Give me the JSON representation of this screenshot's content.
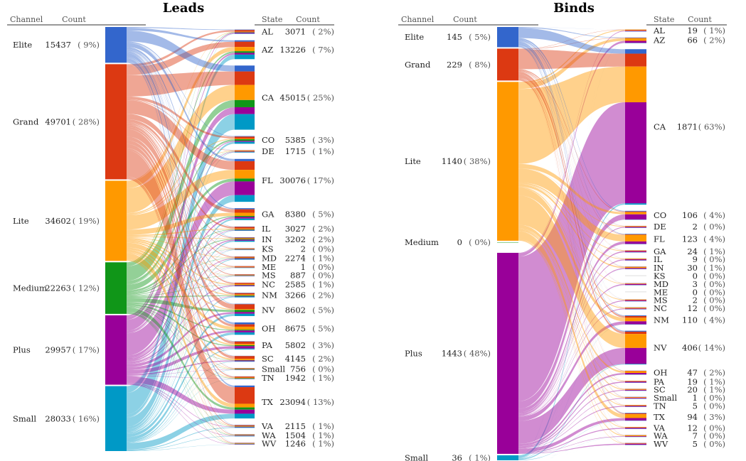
{
  "colors": {
    "Elite": "#3366cc",
    "Grand": "#dc3912",
    "Lite": "#ff9900",
    "Medium": "#109618",
    "Plus": "#990099",
    "Small": "#0099c6"
  },
  "chart_data": [
    {
      "type": "sankey",
      "title": "Leads",
      "left_header": [
        "Channel",
        "Count"
      ],
      "right_header": [
        "State",
        "Count"
      ],
      "channels": [
        {
          "name": "Elite",
          "count": 15437,
          "pct": "( 9%)"
        },
        {
          "name": "Grand",
          "count": 49701,
          "pct": "( 28%)"
        },
        {
          "name": "Lite",
          "count": 34602,
          "pct": "( 19%)"
        },
        {
          "name": "Medium",
          "count": 22263,
          "pct": "( 12%)"
        },
        {
          "name": "Plus",
          "count": 29957,
          "pct": "( 17%)"
        },
        {
          "name": "Small",
          "count": 28033,
          "pct": "( 16%)"
        }
      ],
      "states": [
        {
          "name": "AL",
          "count": 3071,
          "pct": "( 2%)"
        },
        {
          "name": "AZ",
          "count": 13226,
          "pct": "( 7%)"
        },
        {
          "name": "CA",
          "count": 45015,
          "pct": "( 25%)"
        },
        {
          "name": "CO",
          "count": 5385,
          "pct": "( 3%)"
        },
        {
          "name": "DE",
          "count": 1715,
          "pct": "( 1%)"
        },
        {
          "name": "FL",
          "count": 30076,
          "pct": "( 17%)"
        },
        {
          "name": "GA",
          "count": 8380,
          "pct": "( 5%)"
        },
        {
          "name": "IL",
          "count": 3027,
          "pct": "( 2%)"
        },
        {
          "name": "IN",
          "count": 3202,
          "pct": "( 2%)"
        },
        {
          "name": "KS",
          "count": 2,
          "pct": "( 0%)"
        },
        {
          "name": "MD",
          "count": 2274,
          "pct": "( 1%)"
        },
        {
          "name": "ME",
          "count": 1,
          "pct": "( 0%)"
        },
        {
          "name": "MS",
          "count": 887,
          "pct": "( 0%)"
        },
        {
          "name": "NC",
          "count": 2585,
          "pct": "( 1%)"
        },
        {
          "name": "NM",
          "count": 3266,
          "pct": "( 2%)"
        },
        {
          "name": "NV",
          "count": 8602,
          "pct": "( 5%)"
        },
        {
          "name": "OH",
          "count": 8675,
          "pct": "( 5%)"
        },
        {
          "name": "PA",
          "count": 5802,
          "pct": "( 3%)"
        },
        {
          "name": "SC",
          "count": 4145,
          "pct": "( 2%)"
        },
        {
          "name": "Small",
          "count": 756,
          "pct": "( 0%)"
        },
        {
          "name": "TN",
          "count": 1942,
          "pct": "( 1%)"
        },
        {
          "name": "TX",
          "count": 23094,
          "pct": "( 13%)"
        },
        {
          "name": "VA",
          "count": 2115,
          "pct": "( 1%)"
        },
        {
          "name": "WA",
          "count": 1504,
          "pct": "( 1%)"
        },
        {
          "name": "WV",
          "count": 1246,
          "pct": "( 1%)"
        }
      ]
    },
    {
      "type": "sankey",
      "title": "Binds",
      "left_header": [
        "Channel",
        "Count"
      ],
      "right_header": [
        "State",
        "Count"
      ],
      "channels": [
        {
          "name": "Elite",
          "count": 145,
          "pct": "( 5%)"
        },
        {
          "name": "Grand",
          "count": 229,
          "pct": "( 8%)"
        },
        {
          "name": "Lite",
          "count": 1140,
          "pct": "( 38%)"
        },
        {
          "name": "Medium",
          "count": 0,
          "pct": "( 0%)"
        },
        {
          "name": "Plus",
          "count": 1443,
          "pct": "( 48%)"
        },
        {
          "name": "Small",
          "count": 36,
          "pct": "( 1%)"
        }
      ],
      "states": [
        {
          "name": "AL",
          "count": 19,
          "pct": "( 1%)"
        },
        {
          "name": "AZ",
          "count": 66,
          "pct": "( 2%)"
        },
        {
          "name": "CA",
          "count": 1871,
          "pct": "( 63%)"
        },
        {
          "name": "CO",
          "count": 106,
          "pct": "( 4%)"
        },
        {
          "name": "DE",
          "count": 2,
          "pct": "( 0%)"
        },
        {
          "name": "FL",
          "count": 123,
          "pct": "( 4%)"
        },
        {
          "name": "GA",
          "count": 24,
          "pct": "( 1%)"
        },
        {
          "name": "IL",
          "count": 9,
          "pct": "( 0%)"
        },
        {
          "name": "IN",
          "count": 30,
          "pct": "( 1%)"
        },
        {
          "name": "KS",
          "count": 0,
          "pct": "( 0%)"
        },
        {
          "name": "MD",
          "count": 3,
          "pct": "( 0%)"
        },
        {
          "name": "ME",
          "count": 0,
          "pct": "( 0%)"
        },
        {
          "name": "MS",
          "count": 2,
          "pct": "( 0%)"
        },
        {
          "name": "NC",
          "count": 12,
          "pct": "( 0%)"
        },
        {
          "name": "NM",
          "count": 110,
          "pct": "( 4%)"
        },
        {
          "name": "NV",
          "count": 406,
          "pct": "( 14%)"
        },
        {
          "name": "OH",
          "count": 47,
          "pct": "( 2%)"
        },
        {
          "name": "PA",
          "count": 19,
          "pct": "( 1%)"
        },
        {
          "name": "SC",
          "count": 20,
          "pct": "( 1%)"
        },
        {
          "name": "Small",
          "count": 1,
          "pct": "( 0%)"
        },
        {
          "name": "TN",
          "count": 5,
          "pct": "( 0%)"
        },
        {
          "name": "TX",
          "count": 94,
          "pct": "( 3%)"
        },
        {
          "name": "VA",
          "count": 12,
          "pct": "( 0%)"
        },
        {
          "name": "WA",
          "count": 7,
          "pct": "( 0%)"
        },
        {
          "name": "WV",
          "count": 5,
          "pct": "( 0%)"
        }
      ]
    }
  ]
}
